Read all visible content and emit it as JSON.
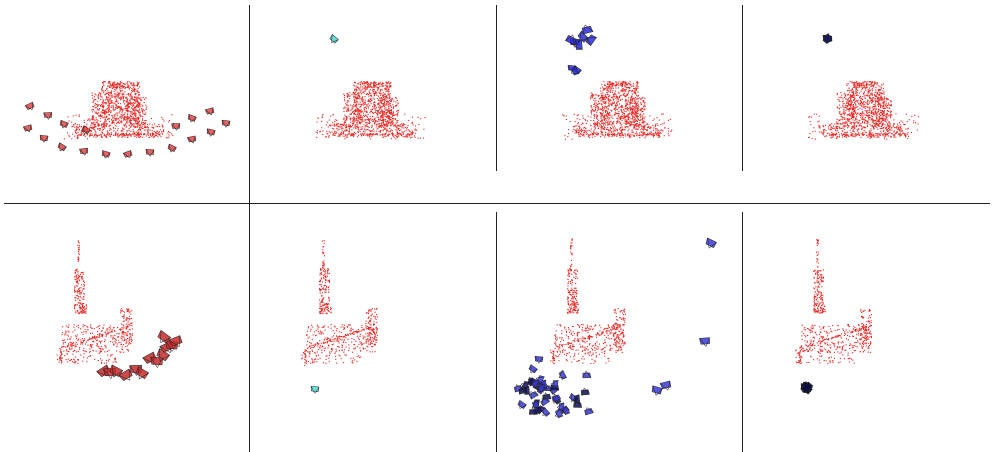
{
  "figure": {
    "rows": [
      {
        "name": "row-1",
        "panels": [
          {
            "id": "r1-c1",
            "content": "point-cloud-with-ground-truth-cameras",
            "camera_color": "#e03a3a",
            "layout": "arc-below"
          },
          {
            "id": "r1-c2",
            "content": "point-cloud-with-single-cyan-camera",
            "camera_color": "#49d6d6",
            "layout": "single-top-left"
          },
          {
            "id": "r1-c3",
            "content": "point-cloud-with-blue-camera-clusters",
            "camera_color": "#2a2ad6",
            "layout": "two-clusters-top-left"
          },
          {
            "id": "r1-c4",
            "content": "point-cloud-with-collapsed-dark-camera",
            "camera_color": "#1a1a6a",
            "layout": "collapsed-top-left"
          }
        ]
      },
      {
        "name": "row-2",
        "panels": [
          {
            "id": "r2-c1",
            "content": "sparse-point-cloud-with-ground-truth-cameras",
            "camera_color": "#c42a2a",
            "layout": "arc-below"
          },
          {
            "id": "r2-c2",
            "content": "sparse-point-cloud-with-single-cyan-camera",
            "camera_color": "#49d6d6",
            "layout": "single-bottom-left"
          },
          {
            "id": "r2-c3",
            "content": "sparse-point-cloud-with-scattered-blue-cameras",
            "camera_color": "#3a3ad8",
            "layout": "scattered"
          },
          {
            "id": "r2-c4",
            "content": "sparse-point-cloud-with-collapsed-dark-camera",
            "camera_color": "#0d0d40",
            "layout": "collapsed-bottom-left"
          }
        ]
      }
    ],
    "colors": {
      "points": "#e8241f",
      "divider": "#222222",
      "background": "#ffffff"
    }
  }
}
